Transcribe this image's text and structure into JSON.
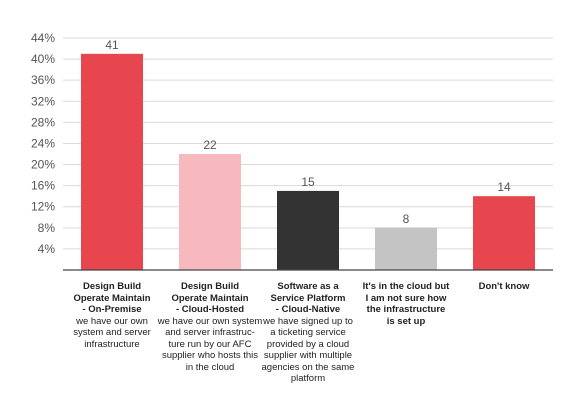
{
  "chart_data": {
    "type": "bar",
    "title": "",
    "xlabel": "",
    "ylabel": "",
    "ylim": [
      0,
      44
    ],
    "yticks": [
      "4%",
      "8%",
      "12%",
      "16%",
      "20%",
      "24%",
      "28%",
      "32%",
      "36%",
      "40%",
      "44%"
    ],
    "ytick_values": [
      4,
      8,
      12,
      16,
      20,
      24,
      28,
      32,
      36,
      40,
      44
    ],
    "grid": true,
    "categories": [
      {
        "title": "Design Build Operate Maintain - On-Premise",
        "title_lines": [
          "Design Build",
          "Operate Maintain",
          "- On-Premise"
        ],
        "desc_lines": [
          "we have our own",
          "system and server",
          "infrastructure"
        ]
      },
      {
        "title": "Design Build Operate Maintain - Cloud-Hosted",
        "title_lines": [
          "Design Build",
          "Operate Maintain",
          "- Cloud-Hosted"
        ],
        "desc_lines": [
          "we have our own system",
          "and server infrastruc-",
          "ture run by our AFC",
          "supplier who hosts this",
          "in the cloud"
        ]
      },
      {
        "title": "Software as a Service Platform - Cloud-Native",
        "title_lines": [
          "Software as a",
          "Service Platform",
          "- Cloud-Native"
        ],
        "desc_lines": [
          "we have signed up to",
          "a ticketing service",
          "provided by a cloud",
          "supplier with multiple",
          "agencies on the same",
          "platform"
        ]
      },
      {
        "title": "It's in the cloud but I am not sure how the infrastructure is set up",
        "title_lines": [
          "It's in the cloud but",
          "I am not sure how",
          "the infrastructure",
          "is set up"
        ],
        "desc_lines": []
      },
      {
        "title": "Don't know",
        "title_lines": [
          "Don't know"
        ],
        "desc_lines": []
      }
    ],
    "values": [
      41,
      22,
      15,
      8,
      14
    ],
    "value_labels": [
      "41",
      "22",
      "15",
      "8",
      "14"
    ],
    "colors": [
      "#e8464e",
      "#f7b9bd",
      "#333333",
      "#c4c4c4",
      "#e8464e"
    ],
    "gridline_color": "#d9d9d9",
    "axis_color": "#444444"
  }
}
